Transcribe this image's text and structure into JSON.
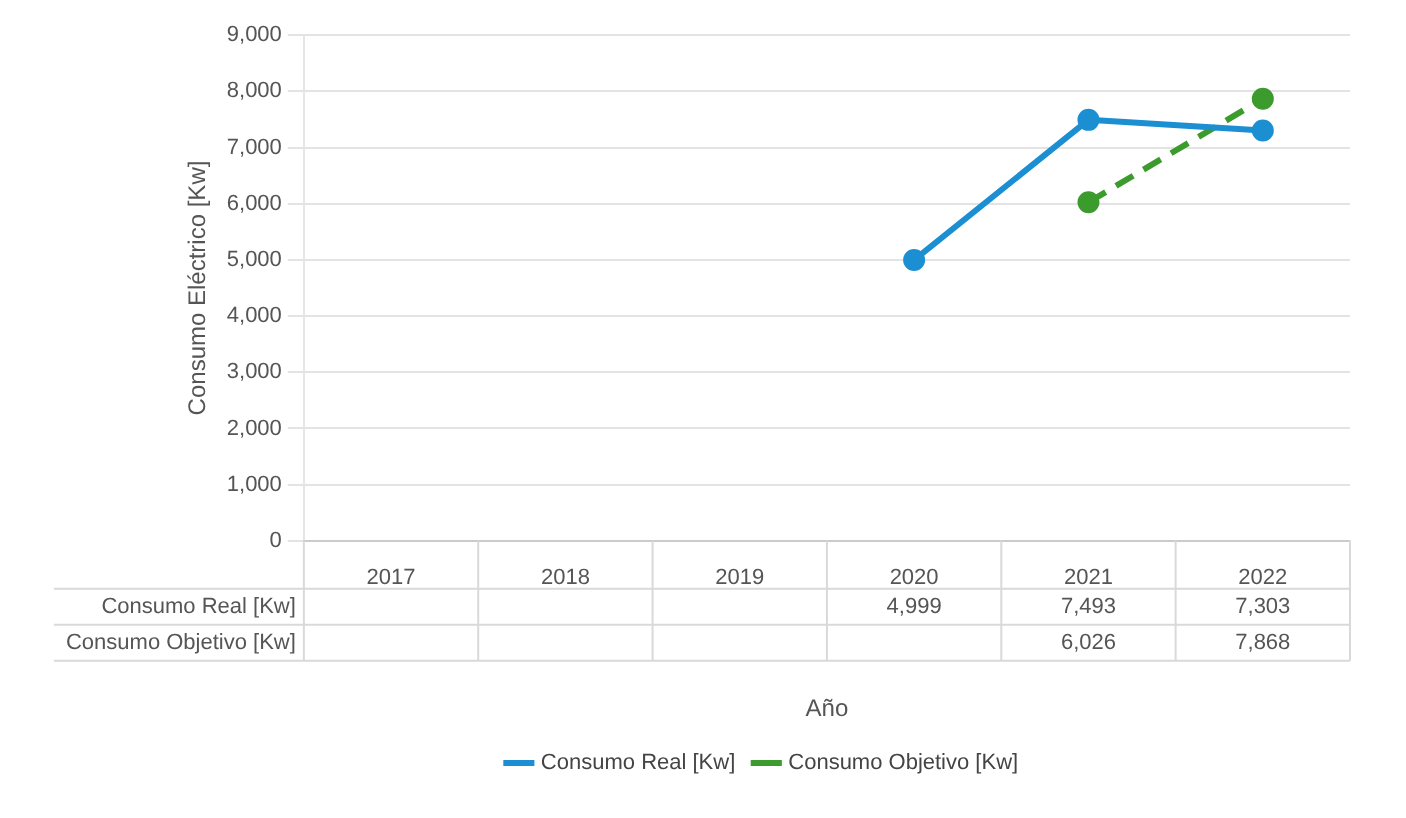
{
  "chart_data": {
    "type": "line",
    "xlabel": "Año",
    "ylabel": "Consumo Eléctrico [Kw]",
    "categories": [
      "2017",
      "2018",
      "2019",
      "2020",
      "2021",
      "2022"
    ],
    "series": [
      {
        "name": "Consumo Real [Kw]",
        "color": "#1b8fd2",
        "values": [
          null,
          null,
          null,
          4999,
          7493,
          7303
        ],
        "value_labels": [
          null,
          null,
          null,
          "4,999",
          "7,493",
          "7,303"
        ]
      },
      {
        "name": "Consumo Objetivo [Kw]",
        "color": "#3c9b2d",
        "line_style": "dashed",
        "values": [
          null,
          null,
          null,
          null,
          6026,
          7868
        ],
        "value_labels": [
          null,
          null,
          null,
          null,
          "6,026",
          "7,868"
        ]
      }
    ],
    "ylim": [
      0,
      9000
    ],
    "yticks": [
      0,
      {
        "value": 1000,
        "label": "1,000"
      },
      {
        "value": 2000,
        "label": "2,000"
      },
      {
        "value": 3000,
        "label": "3,000"
      },
      {
        "value": 4000,
        "label": "4,000"
      },
      {
        "value": 5000,
        "label": "5,000"
      },
      {
        "value": 6000,
        "label": "6,000"
      },
      {
        "value": 7000,
        "label": "7,000"
      },
      {
        "value": 8000,
        "label": "8,000"
      },
      {
        "value": 9000,
        "label": "9,000"
      }
    ],
    "grid": "y",
    "legend": "bottom",
    "marker": "circle"
  }
}
